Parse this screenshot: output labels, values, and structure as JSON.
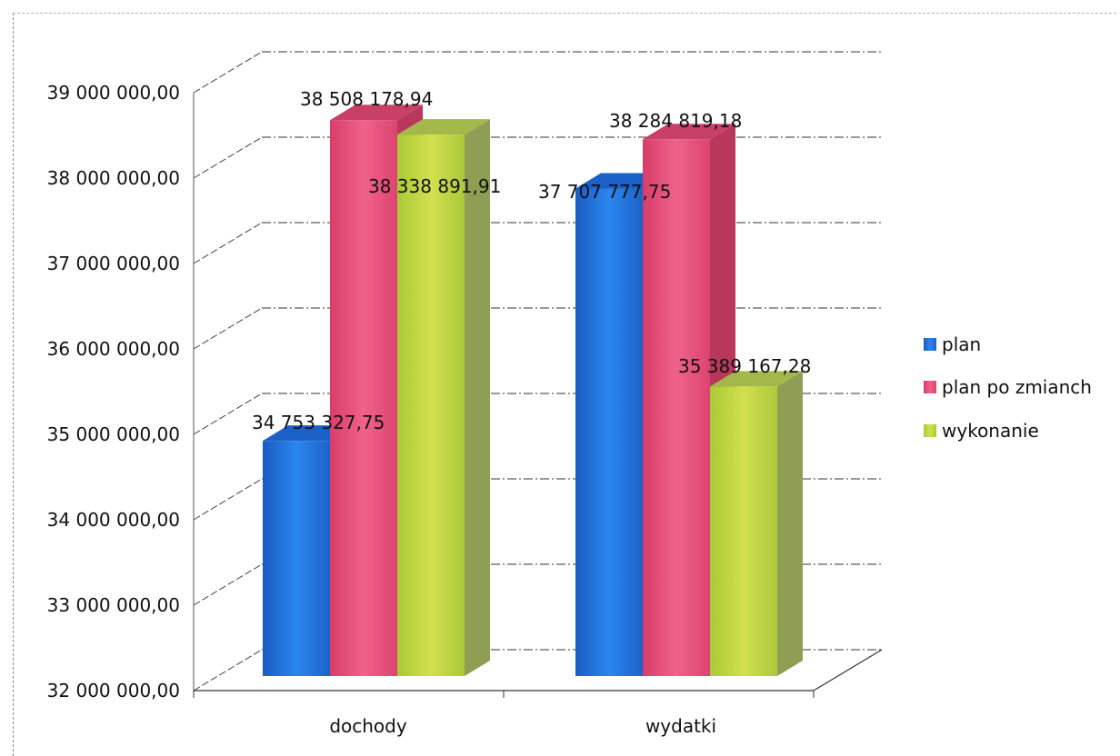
{
  "chart_data": {
    "type": "bar",
    "categories": [
      "dochody",
      "wydatki"
    ],
    "series": [
      {
        "name": "plan",
        "values": [
          34753327.75,
          37707777.75
        ],
        "labels": [
          "34 753 327,75",
          "37 707 777,75"
        ],
        "color": "#1f6fd6"
      },
      {
        "name": "plan po zmianch",
        "values": [
          38508178.94,
          38284819.18
        ],
        "labels": [
          "38 508 178,94",
          "38 284 819,18"
        ],
        "color": "#e64d78"
      },
      {
        "name": "wykonanie",
        "values": [
          38338891.91,
          35389167.28
        ],
        "labels": [
          "38 338 891,91",
          "35 389 167,28"
        ],
        "color": "#b8d43f"
      }
    ],
    "yticks": [
      32000000,
      33000000,
      34000000,
      35000000,
      36000000,
      37000000,
      38000000,
      39000000
    ],
    "ytick_labels": [
      "32 000 000,00",
      "33 000 000,00",
      "34 000 000,00",
      "35 000 000,00",
      "36 000 000,00",
      "37 000 000,00",
      "38 000 000,00",
      "39 000 000,00"
    ],
    "ylim": [
      32000000,
      39000000
    ],
    "grid": true,
    "legend": "right",
    "title": "",
    "xlabel": "",
    "ylabel": ""
  }
}
